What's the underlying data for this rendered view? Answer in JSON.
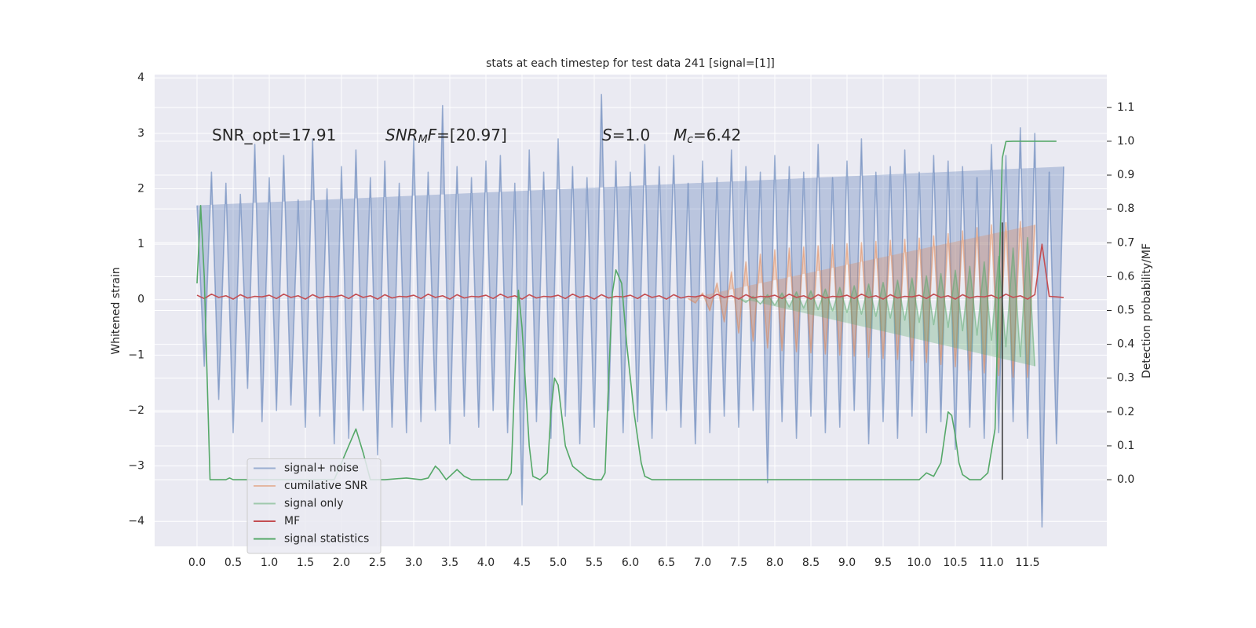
{
  "chart_data": {
    "type": "line",
    "title": "stats at each timestep for test data 241 [signal=[1]]",
    "y_label": "Whitened strain",
    "y2_label": "Detection probability/MF",
    "annotations": [
      [
        "SNR_opt=17.91"
      ],
      [
        "SNR",
        "M",
        "F",
        "=[20.97]"
      ],
      [
        "S",
        "=1.0"
      ],
      [
        "M",
        "c",
        "=6.42"
      ]
    ],
    "grid": true,
    "legend": "lower left",
    "xlim": [
      -0.587,
      12.598
    ],
    "ylim": [
      -4.45,
      4.06
    ],
    "y2lim": [
      -0.197,
      1.197
    ],
    "xticks": [
      {
        "value": 0,
        "label": "0.0"
      },
      0.5,
      {
        "value": 1,
        "label": "1.0"
      },
      1.5,
      {
        "value": 2,
        "label": "2.0"
      },
      2.5,
      {
        "value": 3,
        "label": "3.0"
      },
      3.5,
      {
        "value": 4,
        "label": "4.0"
      },
      4.5,
      {
        "value": 5,
        "label": "5.0"
      },
      5.5,
      {
        "value": 6,
        "label": "6.0"
      },
      6.5,
      {
        "value": 7,
        "label": "7.0"
      },
      7.5,
      {
        "value": 8,
        "label": "8.0"
      },
      8.5,
      {
        "value": 9,
        "label": "9.0"
      },
      9.5,
      {
        "value": 10,
        "label": "10.0"
      },
      10.5,
      {
        "value": 11,
        "label": "11.0"
      },
      11.5
    ],
    "yticks": [
      {
        "value": -4,
        "label": "−4"
      },
      {
        "value": -3,
        "label": "−3"
      },
      {
        "value": -2,
        "label": "−2"
      },
      {
        "value": -1,
        "label": "−1"
      },
      0,
      1,
      2,
      3,
      4
    ],
    "y2ticks": [
      {
        "value": 0,
        "label": "0.0"
      },
      0.1,
      0.2,
      0.3,
      0.4,
      0.5,
      0.6,
      0.7,
      0.8,
      0.9,
      {
        "value": 1,
        "label": "1.0"
      },
      1.1
    ],
    "x": [
      0,
      0.1,
      0.2,
      0.3,
      0.4,
      0.5,
      0.6,
      0.7,
      0.8,
      0.9,
      1,
      1.1,
      1.2,
      1.3,
      1.4,
      1.5,
      1.6,
      1.7,
      1.8,
      1.9,
      2,
      2.1,
      2.2,
      2.3,
      2.4,
      2.5,
      2.6,
      2.7,
      2.8,
      2.9,
      3,
      3.1,
      3.2,
      3.3,
      3.4,
      3.5,
      3.6,
      3.7,
      3.8,
      3.9,
      4,
      4.1,
      4.2,
      4.3,
      4.4,
      4.5,
      4.6,
      4.7,
      4.8,
      4.9,
      5,
      5.1,
      5.2,
      5.3,
      5.4,
      5.5,
      5.6,
      5.7,
      5.8,
      5.9,
      6,
      6.1,
      6.2,
      6.3,
      6.4,
      6.5,
      6.6,
      6.7,
      6.8,
      6.9,
      7,
      7.1,
      7.2,
      7.3,
      7.4,
      7.5,
      7.6,
      7.7,
      7.8,
      7.9,
      8,
      8.1,
      8.2,
      8.3,
      8.4,
      8.5,
      8.6,
      8.7,
      8.8,
      8.9,
      9,
      9.1,
      9.2,
      9.3,
      9.4,
      9.5,
      9.6,
      9.7,
      9.8,
      9.9,
      10,
      10.1,
      10.2,
      10.3,
      10.4,
      10.5,
      10.6,
      10.7,
      10.8,
      10.9,
      11,
      11.1,
      11.2,
      11.3,
      11.4,
      11.5,
      11.6,
      11.7,
      11.8,
      11.9,
      12
    ],
    "series": [
      {
        "name": "signal+ noise",
        "color": "#4c72b0",
        "alpha": 0.5,
        "values": [
          1.7,
          -1.2,
          2.3,
          -1.8,
          2.1,
          -2.4,
          1.9,
          -1.6,
          2.8,
          -2.2,
          2.2,
          -2.0,
          2.6,
          -1.9,
          1.8,
          -2.3,
          2.9,
          -2.1,
          2.0,
          -2.6,
          2.4,
          -2.5,
          2.7,
          -2.0,
          2.2,
          -2.8,
          2.5,
          -2.3,
          2.1,
          -2.4,
          2.9,
          -2.2,
          2.3,
          -2.0,
          3.5,
          -2.6,
          2.4,
          -2.1,
          2.2,
          -2.3,
          2.5,
          -2.0,
          2.6,
          -2.4,
          2.1,
          -3.7,
          2.7,
          -2.2,
          2.3,
          -2.5,
          2.9,
          -2.1,
          2.4,
          -2.6,
          2.2,
          -2.3,
          3.7,
          -2.0,
          2.5,
          -2.4,
          2.3,
          -2.2,
          2.8,
          -2.5,
          2.4,
          -2.0,
          2.6,
          -2.3,
          2.1,
          -2.6,
          2.5,
          -2.4,
          2.2,
          -2.1,
          2.7,
          -2.3,
          2.4,
          -2.0,
          2.3,
          -3.3,
          2.6,
          -2.2,
          2.4,
          -2.5,
          2.3,
          -2.1,
          2.8,
          -2.4,
          2.2,
          -2.3,
          2.5,
          -2.0,
          2.9,
          -2.6,
          2.3,
          -2.2,
          2.4,
          -2.5,
          2.7,
          -2.1,
          2.3,
          -2.4,
          2.6,
          -2.2,
          2.5,
          -2.7,
          2.4,
          -2.3,
          2.2,
          -2.5,
          2.8,
          -2.4,
          2.6,
          -2.2,
          3.1,
          -2.5,
          3.0,
          -4.1,
          2.3,
          -2.6,
          2.4
        ]
      },
      {
        "name": "cumilative SNR",
        "color": "#dd8452",
        "alpha": 0.5,
        "values": [
          null,
          null,
          null,
          null,
          null,
          null,
          null,
          null,
          null,
          null,
          null,
          null,
          null,
          null,
          null,
          null,
          null,
          null,
          null,
          null,
          null,
          null,
          null,
          null,
          null,
          null,
          null,
          null,
          null,
          null,
          null,
          null,
          null,
          null,
          null,
          null,
          null,
          null,
          null,
          null,
          null,
          null,
          null,
          null,
          null,
          null,
          null,
          null,
          null,
          null,
          null,
          null,
          null,
          null,
          null,
          null,
          null,
          null,
          null,
          null,
          null,
          null,
          null,
          null,
          null,
          null,
          null,
          null,
          0.02,
          -0.06,
          0.12,
          -0.2,
          0.3,
          -0.4,
          0.5,
          -0.6,
          0.68,
          -0.75,
          0.82,
          -0.87,
          0.9,
          -0.92,
          0.93,
          -0.94,
          0.95,
          -0.96,
          0.97,
          -0.98,
          0.99,
          -1.0,
          1.01,
          -1.02,
          1.03,
          -1.04,
          1.05,
          -1.06,
          1.07,
          -1.08,
          1.09,
          -1.1,
          1.11,
          -1.13,
          1.15,
          -1.17,
          1.19,
          -1.21,
          1.24,
          -1.27,
          1.3,
          -1.32,
          1.35,
          -1.37,
          1.39,
          -1.4,
          1.41,
          -1.4,
          1.35,
          null,
          null,
          null,
          null
        ]
      },
      {
        "name": "signal only",
        "color": "#55a868",
        "alpha": 0.5,
        "values": [
          null,
          null,
          null,
          null,
          null,
          null,
          null,
          null,
          null,
          null,
          null,
          null,
          null,
          null,
          null,
          null,
          null,
          null,
          null,
          null,
          null,
          null,
          null,
          null,
          null,
          null,
          null,
          null,
          null,
          null,
          null,
          null,
          null,
          null,
          null,
          null,
          null,
          null,
          null,
          null,
          null,
          null,
          null,
          null,
          null,
          null,
          null,
          null,
          null,
          null,
          null,
          null,
          null,
          null,
          null,
          null,
          null,
          null,
          null,
          null,
          null,
          null,
          null,
          null,
          null,
          null,
          null,
          null,
          null,
          null,
          null,
          null,
          null,
          null,
          null,
          0.03,
          -0.05,
          0.06,
          -0.08,
          0.09,
          -0.1,
          0.12,
          -0.13,
          0.14,
          -0.15,
          0.16,
          -0.18,
          0.19,
          -0.2,
          0.22,
          -0.23,
          0.25,
          -0.26,
          0.28,
          -0.3,
          0.31,
          -0.33,
          0.35,
          -0.37,
          0.39,
          -0.41,
          0.43,
          -0.45,
          0.47,
          -0.5,
          0.53,
          -0.56,
          0.6,
          -0.64,
          0.68,
          -0.73,
          0.78,
          -0.85,
          0.93,
          -1.03,
          1.12,
          -1.2,
          null,
          null,
          null,
          null
        ]
      },
      {
        "name": "MF",
        "color": "#c44e52",
        "alpha": 1,
        "values": [
          0.08,
          0.02,
          0.1,
          0.04,
          0.07,
          0.01,
          0.09,
          0.03,
          0.06,
          0.05,
          0.08,
          0.02,
          0.1,
          0.04,
          0.07,
          0.01,
          0.09,
          0.03,
          0.06,
          0.05,
          0.08,
          0.02,
          0.1,
          0.04,
          0.07,
          0.01,
          0.09,
          0.03,
          0.06,
          0.05,
          0.08,
          0.02,
          0.1,
          0.04,
          0.07,
          0.01,
          0.09,
          0.03,
          0.06,
          0.05,
          0.08,
          0.02,
          0.1,
          0.04,
          0.07,
          0.01,
          0.09,
          0.03,
          0.06,
          0.05,
          0.08,
          0.02,
          0.1,
          0.04,
          0.07,
          0.01,
          0.09,
          0.03,
          0.06,
          0.05,
          0.08,
          0.02,
          0.1,
          0.04,
          0.07,
          0.01,
          0.09,
          0.03,
          0.06,
          0.05,
          0.08,
          0.02,
          0.1,
          0.04,
          0.07,
          0.01,
          0.09,
          0.03,
          0.06,
          0.05,
          0.08,
          0.02,
          0.1,
          0.04,
          0.07,
          0.01,
          0.09,
          0.03,
          0.06,
          0.05,
          0.08,
          0.02,
          0.1,
          0.04,
          0.07,
          0.01,
          0.09,
          0.03,
          0.06,
          0.05,
          0.08,
          0.02,
          0.1,
          0.04,
          0.07,
          0.01,
          0.09,
          0.03,
          0.06,
          0.05,
          0.08,
          0.02,
          0.1,
          0.04,
          0.07,
          0.01,
          0.09,
          1.0,
          0.06,
          0.05,
          0.04
        ]
      },
      {
        "name": "signal statistics",
        "color": "#55a868",
        "alpha": 1,
        "axis": "y2",
        "x": [
          0,
          0.05,
          0.1,
          0.18,
          0.3,
          0.4,
          0.45,
          0.5,
          0.8,
          1.0,
          1.5,
          1.9,
          2.0,
          2.1,
          2.2,
          2.3,
          2.4,
          2.6,
          2.9,
          3.1,
          3.2,
          3.3,
          3.35,
          3.45,
          3.55,
          3.6,
          3.7,
          3.8,
          4.0,
          4.3,
          4.35,
          4.4,
          4.45,
          4.5,
          4.6,
          4.65,
          4.75,
          4.85,
          4.9,
          4.95,
          5.0,
          5.1,
          5.2,
          5.4,
          5.5,
          5.6,
          5.65,
          5.7,
          5.75,
          5.8,
          5.88,
          5.95,
          6.05,
          6.15,
          6.2,
          6.3,
          7.0,
          8.0,
          9.0,
          10.0,
          10.1,
          10.2,
          10.3,
          10.4,
          10.45,
          10.5,
          10.55,
          10.6,
          10.7,
          10.85,
          10.95,
          11.05,
          11.15,
          11.2,
          11.3,
          11.5,
          11.9
        ],
        "values": [
          0.58,
          0.81,
          0.6,
          0.0,
          0.0,
          0.0,
          0.005,
          0.0,
          0.0,
          0.0,
          0.0,
          0.0,
          0.05,
          0.1,
          0.15,
          0.08,
          0.0,
          0.0,
          0.005,
          0.0,
          0.005,
          0.04,
          0.03,
          0.0,
          0.02,
          0.03,
          0.01,
          0.0,
          0.0,
          0.0,
          0.02,
          0.3,
          0.56,
          0.45,
          0.1,
          0.01,
          0.0,
          0.02,
          0.2,
          0.3,
          0.28,
          0.1,
          0.04,
          0.005,
          0.0,
          0.0,
          0.02,
          0.3,
          0.55,
          0.62,
          0.58,
          0.4,
          0.2,
          0.05,
          0.01,
          0.0,
          0.0,
          0.0,
          0.0,
          0.0,
          0.02,
          0.01,
          0.05,
          0.2,
          0.19,
          0.13,
          0.05,
          0.015,
          0.0,
          0.0,
          0.02,
          0.15,
          0.95,
          0.999,
          1.0,
          1.0,
          1.0
        ]
      }
    ],
    "marker_line": {
      "x": [
        11.15,
        11.15
      ],
      "values": [
        0,
        0.76
      ],
      "axis": "y2",
      "color": "#333333"
    }
  }
}
